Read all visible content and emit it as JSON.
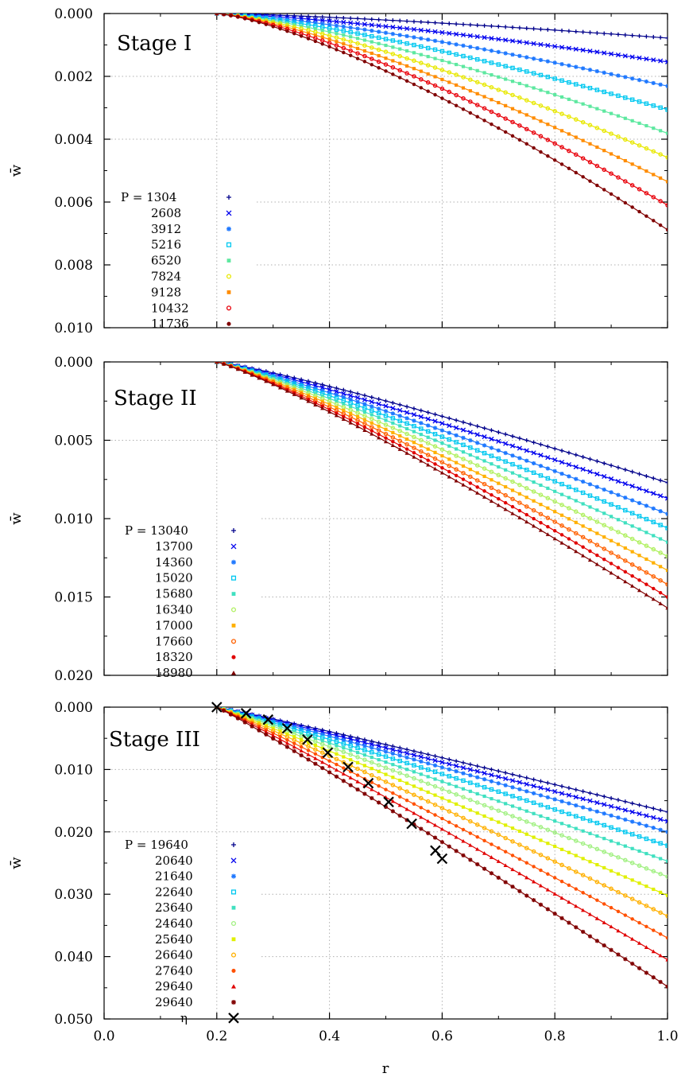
{
  "figure": {
    "xlabel": "r",
    "ylabel": "w̄"
  },
  "chart_data": [
    {
      "type": "line",
      "stage_label": "Stage I",
      "xlabel": "",
      "ylabel": "w̄",
      "xlim": [
        0.0,
        1.0
      ],
      "ylim": [
        0.0,
        0.01
      ],
      "y_inverted": true,
      "grid": true,
      "legend_position": "middle-left",
      "legend_prefix": "P = ",
      "xticks": [
        "0.0",
        "0.2",
        "0.4",
        "0.6",
        "0.8",
        "1.0"
      ],
      "yticks": [
        {
          "value": 0.0,
          "label": "0.000"
        },
        {
          "value": 0.002,
          "label": "0.002"
        },
        {
          "value": 0.004,
          "label": "0.004"
        },
        {
          "value": 0.006,
          "label": "0.006"
        },
        {
          "value": 0.008,
          "label": "0.008"
        },
        {
          "value": 0.01,
          "label": "0.010"
        }
      ],
      "r_start": 0.2,
      "r_end": 1.0,
      "series": [
        {
          "name": "1304",
          "color": "#00008b",
          "marker": "plus",
          "w_end": 0.00078
        },
        {
          "name": "2608",
          "color": "#0000ee",
          "marker": "x",
          "w_end": 0.00154
        },
        {
          "name": "3912",
          "color": "#1e78ff",
          "marker": "star",
          "w_end": 0.00231
        },
        {
          "name": "5216",
          "color": "#00c8f0",
          "marker": "square-open",
          "w_end": 0.00306
        },
        {
          "name": "6520",
          "color": "#5ee8a0",
          "marker": "square-filled",
          "w_end": 0.00381
        },
        {
          "name": "7824",
          "color": "#e8e800",
          "marker": "circle-open",
          "w_end": 0.00458
        },
        {
          "name": "9128",
          "color": "#ff8c00",
          "marker": "square-filled",
          "w_end": 0.00535
        },
        {
          "name": "10432",
          "color": "#e8000a",
          "marker": "circle-open",
          "w_end": 0.0061
        },
        {
          "name": "11736",
          "color": "#800000",
          "marker": "circle-filled",
          "w_end": 0.00688
        }
      ]
    },
    {
      "type": "line",
      "stage_label": "Stage II",
      "xlabel": "",
      "ylabel": "w̄",
      "xlim": [
        0.0,
        1.0
      ],
      "ylim": [
        0.0,
        0.02
      ],
      "y_inverted": true,
      "grid": true,
      "legend_position": "middle-left",
      "legend_prefix": "P = ",
      "xticks": [
        "0.0",
        "0.2",
        "0.4",
        "0.6",
        "0.8",
        "1.0"
      ],
      "yticks": [
        {
          "value": 0.0,
          "label": "0.000"
        },
        {
          "value": 0.005,
          "label": "0.005"
        },
        {
          "value": 0.01,
          "label": "0.010"
        },
        {
          "value": 0.015,
          "label": "0.015"
        },
        {
          "value": 0.02,
          "label": "0.020"
        }
      ],
      "r_start": 0.2,
      "r_end": 1.0,
      "series": [
        {
          "name": "13040",
          "color": "#00008b",
          "marker": "plus",
          "w_end": 0.0077
        },
        {
          "name": "13700",
          "color": "#0000ee",
          "marker": "x",
          "w_end": 0.0087
        },
        {
          "name": "14360",
          "color": "#1e78ff",
          "marker": "star",
          "w_end": 0.0097
        },
        {
          "name": "15020",
          "color": "#00c8f0",
          "marker": "square-open",
          "w_end": 0.0106
        },
        {
          "name": "15680",
          "color": "#40e0c0",
          "marker": "square-filled",
          "w_end": 0.0115
        },
        {
          "name": "16340",
          "color": "#b0f060",
          "marker": "circle-open",
          "w_end": 0.0124
        },
        {
          "name": "17000",
          "color": "#ffb000",
          "marker": "square-filled",
          "w_end": 0.0133
        },
        {
          "name": "17660",
          "color": "#ff6000",
          "marker": "circle-open",
          "w_end": 0.0142
        },
        {
          "name": "18320",
          "color": "#e00000",
          "marker": "circle-filled",
          "w_end": 0.015
        },
        {
          "name": "18980",
          "color": "#800000",
          "marker": "triangle",
          "w_end": 0.0157
        }
      ]
    },
    {
      "type": "line",
      "stage_label": "Stage III",
      "xlabel": "r",
      "ylabel": "w̄",
      "xlim": [
        0.0,
        1.0
      ],
      "ylim": [
        0.0,
        0.05
      ],
      "y_inverted": true,
      "grid": true,
      "legend_position": "lower-left",
      "legend_prefix": "P = ",
      "xticks": [
        "0.0",
        "0.2",
        "0.4",
        "0.6",
        "0.8",
        "1.0"
      ],
      "yticks": [
        {
          "value": 0.0,
          "label": "0.000"
        },
        {
          "value": 0.01,
          "label": "0.010"
        },
        {
          "value": 0.02,
          "label": "0.020"
        },
        {
          "value": 0.03,
          "label": "0.030"
        },
        {
          "value": 0.04,
          "label": "0.040"
        },
        {
          "value": 0.05,
          "label": "0.050"
        }
      ],
      "r_start": 0.2,
      "r_end": 1.0,
      "series": [
        {
          "name": "19640",
          "color": "#00008b",
          "marker": "plus",
          "w_end": 0.0168,
          "r_stop": 1.0
        },
        {
          "name": "20640",
          "color": "#0000ee",
          "marker": "x",
          "w_end": 0.0183,
          "r_stop": 1.0
        },
        {
          "name": "21640",
          "color": "#1e78ff",
          "marker": "star",
          "w_end": 0.02,
          "r_stop": 1.0
        },
        {
          "name": "22640",
          "color": "#00c8f0",
          "marker": "square-open",
          "w_end": 0.0222,
          "r_stop": 1.0
        },
        {
          "name": "23640",
          "color": "#40e0c0",
          "marker": "square-filled",
          "w_end": 0.0247,
          "r_stop": 1.0
        },
        {
          "name": "24640",
          "color": "#a0f080",
          "marker": "circle-open",
          "w_end": 0.0272,
          "r_stop": 1.0
        },
        {
          "name": "25640",
          "color": "#e0f000",
          "marker": "square-filled",
          "w_end": 0.0302,
          "r_stop": 1.0
        },
        {
          "name": "26640",
          "color": "#ffb000",
          "marker": "circle-open",
          "w_end": 0.0335,
          "r_stop": 1.0
        },
        {
          "name": "27640",
          "color": "#ff5000",
          "marker": "circle-filled",
          "w_end": 0.037,
          "r_stop": 1.0
        },
        {
          "name": "29640",
          "color": "#e00000",
          "marker": "triangle",
          "w_end": 0.0405,
          "r_stop": 1.0
        },
        {
          "name": "29640",
          "color": "#800000",
          "marker": "star",
          "w_end": 0.0448,
          "r_stop": 1.0
        }
      ],
      "eta": {
        "name": "η",
        "color": "#000000",
        "marker": "big-x",
        "points": [
          {
            "x": 0.2,
            "y": 0.0
          },
          {
            "x": 0.252,
            "y": 0.001
          },
          {
            "x": 0.291,
            "y": 0.002
          },
          {
            "x": 0.325,
            "y": 0.0034
          },
          {
            "x": 0.361,
            "y": 0.0052
          },
          {
            "x": 0.397,
            "y": 0.0073
          },
          {
            "x": 0.433,
            "y": 0.0096
          },
          {
            "x": 0.469,
            "y": 0.0122
          },
          {
            "x": 0.505,
            "y": 0.0152
          },
          {
            "x": 0.546,
            "y": 0.0187
          },
          {
            "x": 0.588,
            "y": 0.023
          },
          {
            "x": 0.6,
            "y": 0.0243
          }
        ]
      }
    }
  ]
}
